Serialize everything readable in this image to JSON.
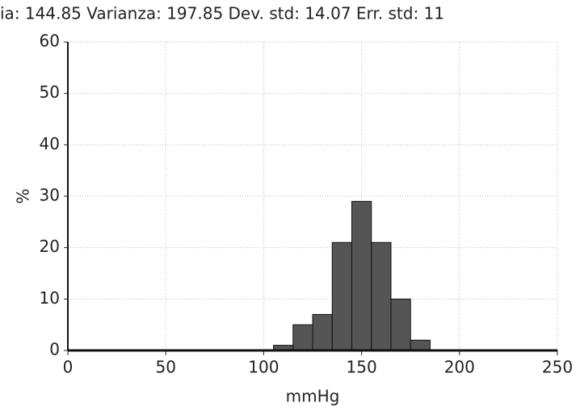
{
  "chart_data": {
    "type": "histogram",
    "title": "ia: 144.85  Varianza: 197.85  Dev. std: 14.07  Err. std: 11",
    "x_label": "mmHg",
    "y_label": "%",
    "bins": [
      105,
      115,
      125,
      135,
      145,
      155,
      165,
      175,
      185
    ],
    "values": [
      1,
      5,
      7,
      21,
      29,
      21,
      10,
      2
    ],
    "color": "#555555",
    "xlim": [
      0,
      250
    ],
    "xticks": [
      0,
      50,
      100,
      150,
      200,
      250
    ],
    "ylim": [
      0,
      60
    ],
    "yticks": [
      0,
      10,
      20,
      30,
      40,
      50,
      60
    ],
    "grid": true
  }
}
